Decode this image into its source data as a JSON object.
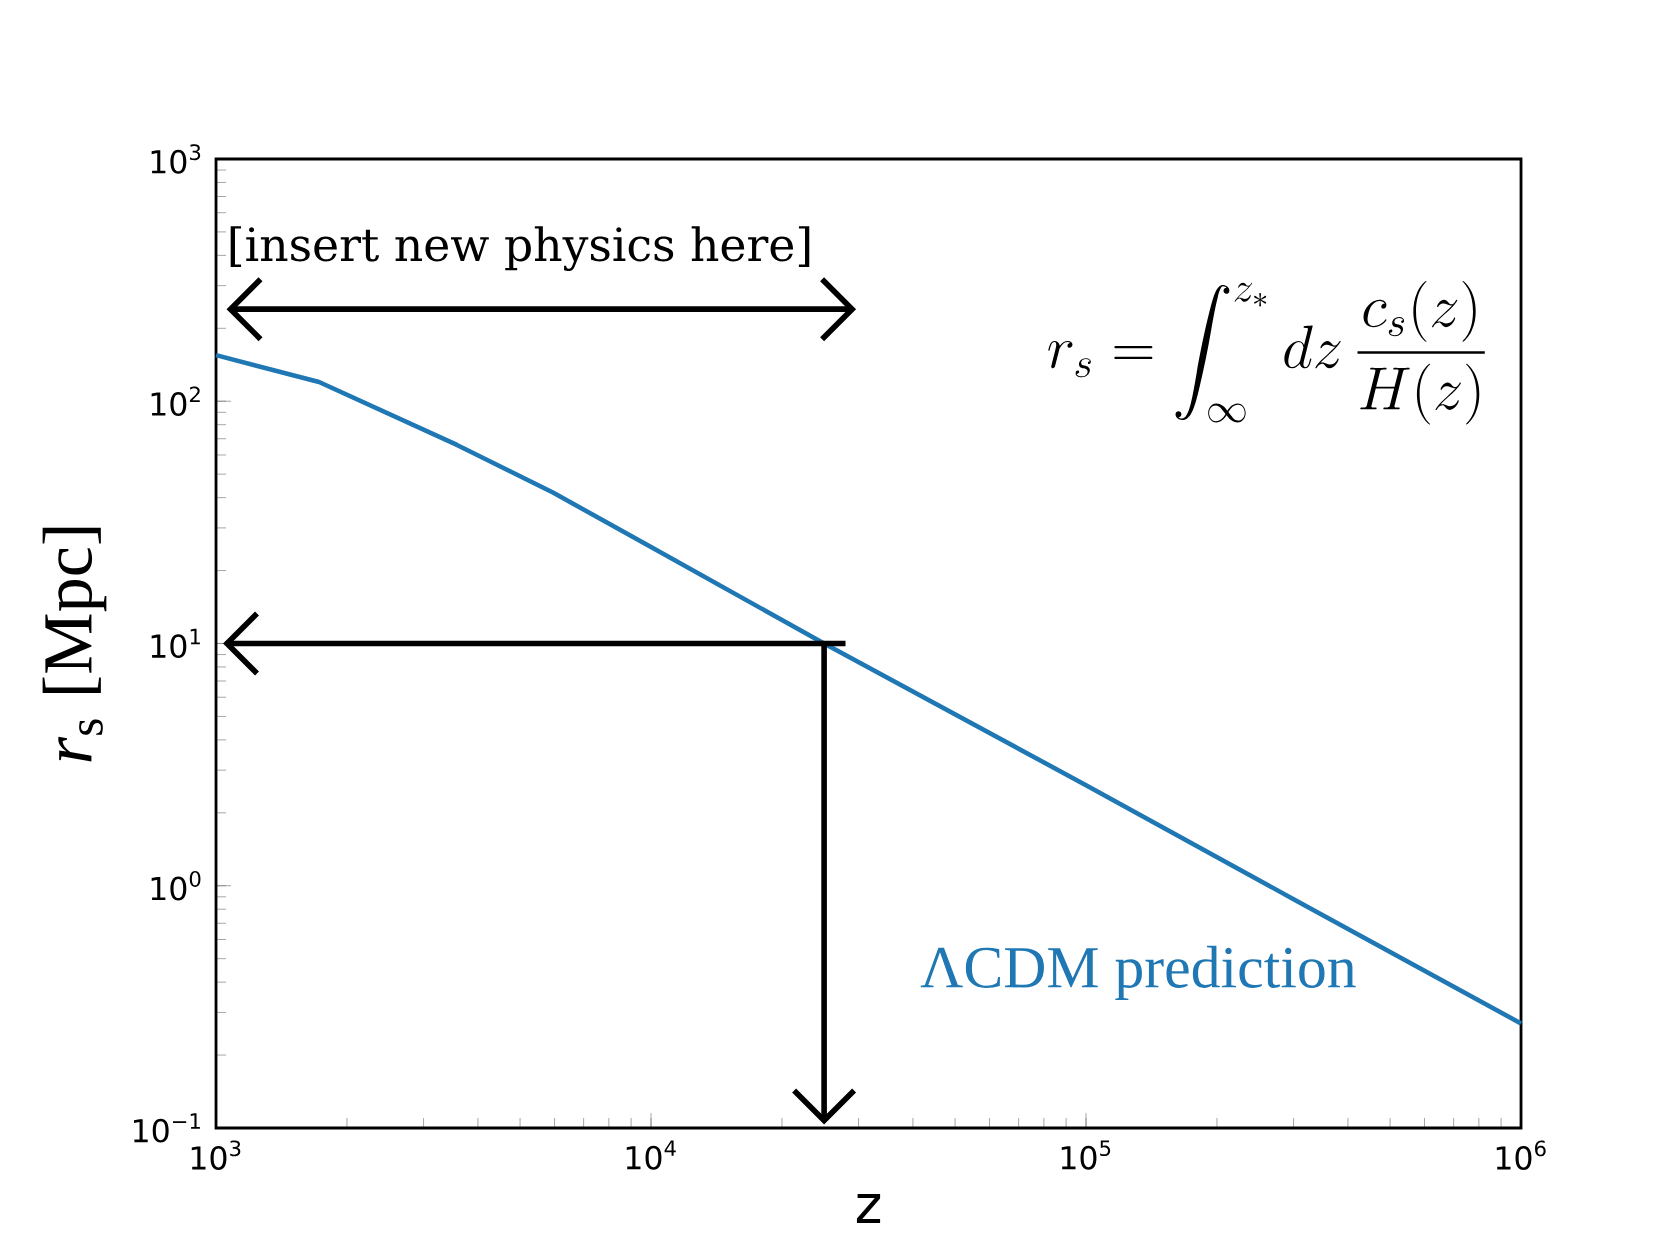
{
  "chart_data": {
    "type": "line",
    "xlabel": "z",
    "ylabel": "*r*$_{s}$ [Mpc]",
    "log": "xy",
    "grid": false,
    "xlim": [
      1000,
      1000000
    ],
    "ylim": [
      0.1,
      1000
    ],
    "xticks": [
      {
        "value": 1000,
        "label": "10$^{3}$"
      },
      {
        "value": 10000,
        "label": "10$^{4}$"
      },
      {
        "value": 100000,
        "label": "10$^{5}$"
      },
      {
        "value": 1000000,
        "label": "10$^{6}$"
      }
    ],
    "yticks": [
      {
        "value": 0.1,
        "label": "10$^{−1}$"
      },
      {
        "value": 1,
        "label": "10$^{0}$"
      },
      {
        "value": 10,
        "label": "10$^{1}$"
      },
      {
        "value": 100,
        "label": "10$^{2}$"
      },
      {
        "value": 1000,
        "label": "10$^{3}$"
      }
    ],
    "x": [
      1000,
      1725,
      3580,
      5950,
      10000,
      25000,
      100000,
      300000,
      1000000
    ],
    "series": [
      {
        "name": "ΛCDM prediction",
        "color": "#1f77b4",
        "values": [
          155,
          120,
          66,
          42,
          25,
          10,
          2.6,
          0.88,
          0.27
        ]
      }
    ],
    "ref_lines": [
      {
        "axis": "y",
        "value": 10,
        "label": null
      },
      {
        "axis": "x",
        "value": 25000,
        "label": null
      }
    ],
    "annotations": [
      "[insert new physics here]",
      "r_s = \\int_{\\infty}^{z_*} dz\\, \\frac{c_s(z)}{H(z)}"
    ]
  }
}
